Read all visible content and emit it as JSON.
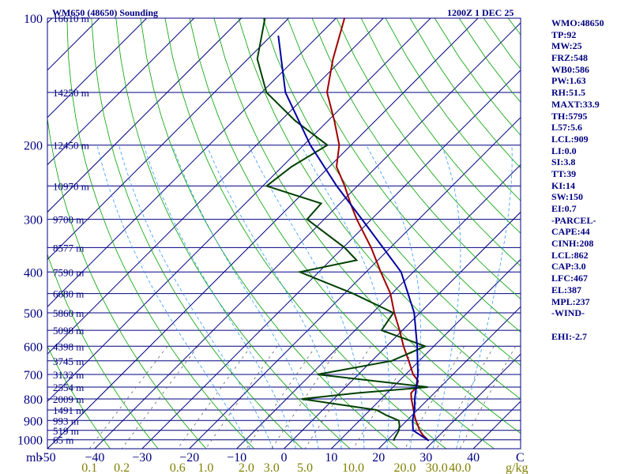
{
  "chart_data": {
    "type": "skew-t",
    "title_left": "WM650 (48650) Sounding",
    "title_right": "1200Z  1 DEC 25",
    "pressure_axis_label": "mb",
    "pressure_levels": [
      100,
      200,
      300,
      400,
      500,
      600,
      700,
      800,
      900,
      1000
    ],
    "pressure_range": [
      100,
      1050
    ],
    "temperature_ticks": [
      -50,
      -40,
      -30,
      -20,
      -10,
      0,
      10,
      20,
      30,
      40
    ],
    "temperature_tick_labels": [
      "-50",
      "−40",
      "−30",
      "−20",
      "−10",
      "0",
      "10",
      "20",
      "30",
      "40"
    ],
    "temperature_unit": "C",
    "temperature_range_at_surface": [
      -50,
      50
    ],
    "mixing_ratio_labels": [
      "0.1",
      "0.2",
      "0.6",
      "1.0",
      "2.0",
      "3.0",
      "5.0",
      "10.0",
      "20.0",
      "30.0",
      "40.0"
    ],
    "mixing_ratio_unit": "g/kg",
    "heights": [
      {
        "p": 100,
        "label": "16610 m"
      },
      {
        "p": 150,
        "label": "14250 m"
      },
      {
        "p": 200,
        "label": "12450 m"
      },
      {
        "p": 250,
        "label": "10970 m"
      },
      {
        "p": 300,
        "label": "9700 m"
      },
      {
        "p": 350,
        "label": "8577 m"
      },
      {
        "p": 400,
        "label": "7590 m"
      },
      {
        "p": 450,
        "label": "6680 m"
      },
      {
        "p": 500,
        "label": "5860 m"
      },
      {
        "p": 550,
        "label": "5098 m"
      },
      {
        "p": 600,
        "label": "4398 m"
      },
      {
        "p": 650,
        "label": "3745 m"
      },
      {
        "p": 700,
        "label": "3132 m"
      },
      {
        "p": 750,
        "label": "2554 m"
      },
      {
        "p": 800,
        "label": "2009 m"
      },
      {
        "p": 850,
        "label": "1491 m"
      },
      {
        "p": 900,
        "label": "993 m"
      },
      {
        "p": 950,
        "label": "519 m"
      },
      {
        "p": 1000,
        "label": "65 m"
      }
    ],
    "series": [
      {
        "name": "temperature",
        "color": "#a00000",
        "points": [
          [
            1005,
            28.9
          ],
          [
            1000,
            28.5
          ],
          [
            975,
            26.5
          ],
          [
            950,
            24.8
          ],
          [
            925,
            23.4
          ],
          [
            900,
            21.9
          ],
          [
            875,
            20.5
          ],
          [
            850,
            19.2
          ],
          [
            800,
            16.4
          ],
          [
            775,
            15.1
          ],
          [
            750,
            15.0
          ],
          [
            725,
            14.0
          ],
          [
            700,
            11.6
          ],
          [
            650,
            7.8
          ],
          [
            600,
            3.6
          ],
          [
            550,
            -0.6
          ],
          [
            500,
            -5.4
          ],
          [
            450,
            -10.3
          ],
          [
            400,
            -16.9
          ],
          [
            350,
            -24.1
          ],
          [
            300,
            -33.1
          ],
          [
            275,
            -37.8
          ],
          [
            250,
            -42.7
          ],
          [
            225,
            -48.5
          ],
          [
            200,
            -52.5
          ],
          [
            175,
            -58.7
          ],
          [
            150,
            -66.2
          ],
          [
            125,
            -72.0
          ],
          [
            100,
            -78.2
          ]
        ]
      },
      {
        "name": "dewpoint",
        "color": "#004000",
        "points": [
          [
            1005,
            21.6
          ],
          [
            1000,
            21.3
          ],
          [
            950,
            20.4
          ],
          [
            925,
            19.5
          ],
          [
            900,
            18.3
          ],
          [
            875,
            14.6
          ],
          [
            850,
            11.4
          ],
          [
            800,
            -6.8
          ],
          [
            775,
            3.5
          ],
          [
            750,
            17.4
          ],
          [
            700,
            -8.6
          ],
          [
            650,
            4.2
          ],
          [
            600,
            8.2
          ],
          [
            550,
            -4.4
          ],
          [
            500,
            -5.6
          ],
          [
            450,
            -18.2
          ],
          [
            400,
            -34.0
          ],
          [
            375,
            -24.5
          ],
          [
            350,
            -29.7
          ],
          [
            300,
            -43.6
          ],
          [
            275,
            -44.0
          ],
          [
            250,
            -59.2
          ],
          [
            225,
            -58.0
          ],
          [
            200,
            -55.0
          ],
          [
            175,
            -67.0
          ],
          [
            150,
            -79.0
          ],
          [
            125,
            -88.0
          ],
          [
            100,
            -95.0
          ]
        ]
      },
      {
        "name": "parcel",
        "color": "#0000a0",
        "points": [
          [
            1005,
            28.9
          ],
          [
            950,
            23.4
          ],
          [
            900,
            21.2
          ],
          [
            850,
            19.4
          ],
          [
            800,
            17.1
          ],
          [
            700,
            12.6
          ],
          [
            600,
            6.5
          ],
          [
            500,
            -1.2
          ],
          [
            400,
            -12.6
          ],
          [
            300,
            -32.0
          ],
          [
            250,
            -44.4
          ],
          [
            200,
            -58.6
          ],
          [
            150,
            -75.0
          ],
          [
            110,
            -88.5
          ]
        ]
      }
    ],
    "indices": [
      "WMO:48650",
      "TP:92",
      "MW:25",
      "FRZ:548",
      "WB0:586",
      "PW:1.63",
      "RH:51.5",
      "MAXT:33.9",
      "TH:5795",
      "L57:5.6",
      "LCL:909",
      "LI:0.0",
      "SI:3.8",
      "TT:39",
      "KI:14",
      "SW:150",
      "EI:0.7",
      "-PARCEL-",
      "CAPE:44",
      "CINH:208",
      "LCL:862",
      "CAP:3.0",
      "LFC:467",
      "EL:387",
      "MPL:237",
      "-WIND-",
      "",
      "EHI:-2.7"
    ],
    "colors": {
      "frame": "#000080",
      "isobar": "#000080",
      "isotherm": "#000080",
      "dry_adiabat": "#00a000",
      "moist_adiabat": "#3399ff",
      "mixing_ratio": "#606060"
    }
  }
}
